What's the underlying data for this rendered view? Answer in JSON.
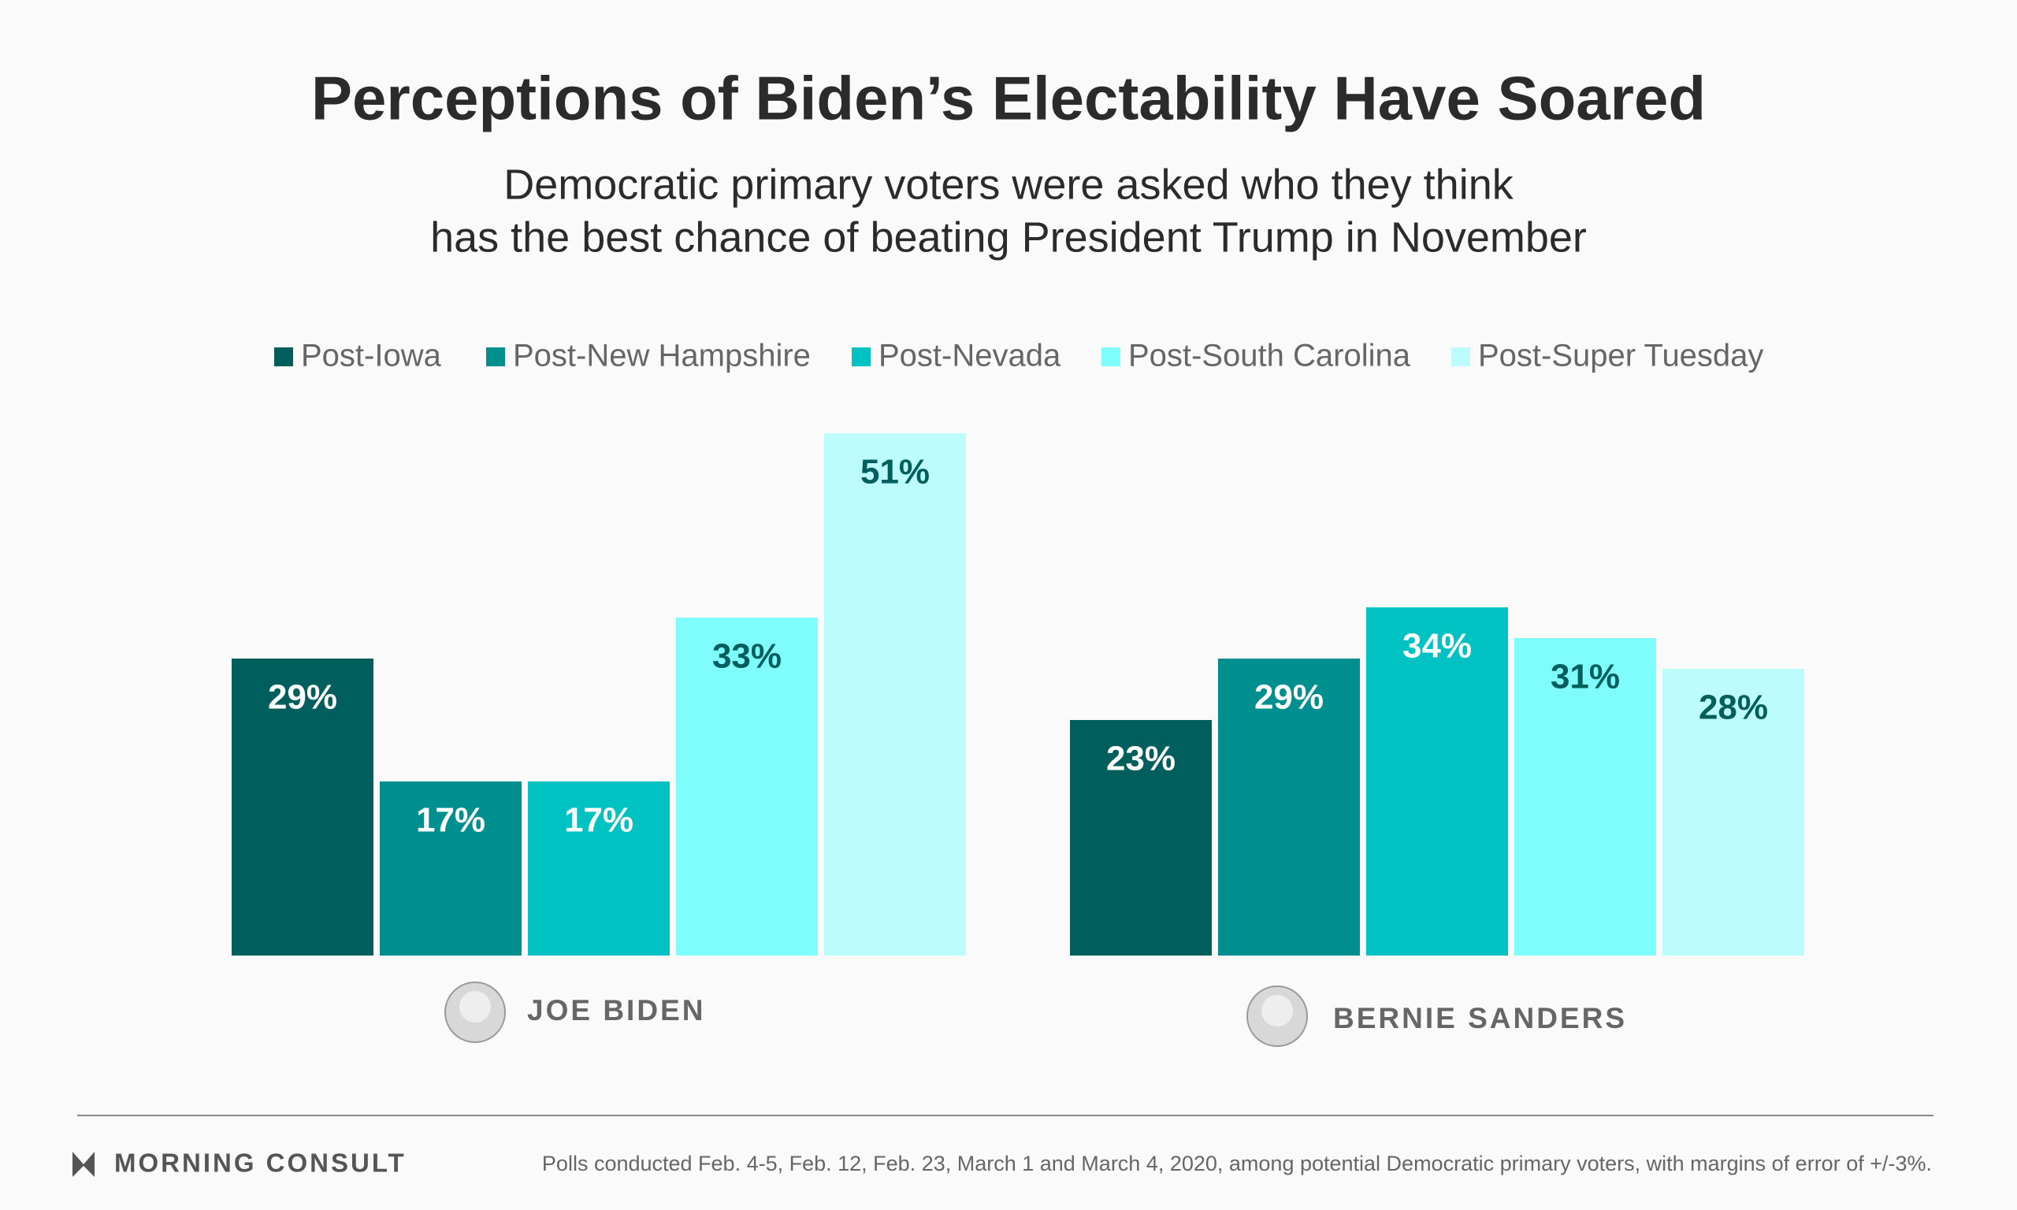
{
  "chart_data": {
    "type": "bar",
    "title": "Perceptions of Biden’s Electability Have Soared",
    "subtitle": [
      "Democratic primary voters were asked who they think",
      "has the best chance of beating President Trump in November"
    ],
    "categories": [
      "JOE BIDEN",
      "BERNIE SANDERS"
    ],
    "series": [
      {
        "name": "Post-Iowa",
        "color": "#005e5c",
        "label_color": "#ffffff",
        "values": [
          29,
          23
        ],
        "value_labels": [
          "29%",
          "23%"
        ]
      },
      {
        "name": "Post-New Hampshire",
        "color": "#008f8f",
        "label_color": "#ffffff",
        "values": [
          17,
          29
        ],
        "value_labels": [
          "17%",
          "29%"
        ]
      },
      {
        "name": "Post-Nevada",
        "color": "#00c2c2",
        "label_color": "#ffffff",
        "values": [
          17,
          34
        ],
        "value_labels": [
          "17%",
          "34%"
        ]
      },
      {
        "name": "Post-South Carolina",
        "color": "#7ffcfc",
        "label_color": "#005e5c",
        "values": [
          33,
          31
        ],
        "value_labels": [
          "33%",
          "31%"
        ]
      },
      {
        "name": "Post-Super Tuesday",
        "color": "#bdfcfc",
        "label_color": "#005e5c",
        "values": [
          51,
          28
        ],
        "value_labels": [
          "51%",
          "28%"
        ]
      }
    ],
    "legend": "top"
  },
  "footer": {
    "brand": "MORNING CONSULT",
    "note": "Polls conducted Feb. 4-5, Feb. 12, Feb. 23, March 1 and March 4, 2020, among potential Democratic primary voters, with margins of error of +/-3%."
  }
}
